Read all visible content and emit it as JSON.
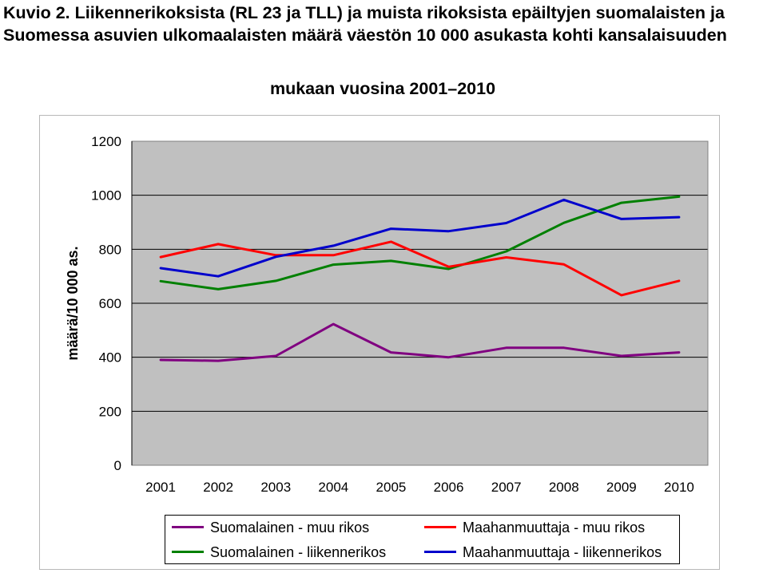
{
  "header": {
    "line1": "Kuvio 2. Liikennerikoksista (RL 23 ja TLL) ja muista rikoksista epäiltyjen suomalaisten ja",
    "line2": "Suomessa asuvien ulkomaalaisten määrä väestön 10 000 asukasta kohti kansalaisuuden",
    "line3": "mukaan vuosina 2001–2010"
  },
  "chart_data": {
    "type": "line",
    "title": "Kuvio 2. Liikennerikoksista (RL 23 ja TLL) ja muista rikoksista epäiltyjen suomalaisten ja Suomessa asuvien ulkomaalaisten määrä väestön 10 000 asukasta kohti kansalaisuuden mukaan vuosina 2001–2010",
    "xlabel": "",
    "ylabel": "määrä/10 000 as.",
    "categories": [
      "2001",
      "2002",
      "2003",
      "2004",
      "2005",
      "2006",
      "2007",
      "2008",
      "2009",
      "2010"
    ],
    "ylim": [
      0,
      1200
    ],
    "yticks": [
      "0",
      "200",
      "400",
      "600",
      "800",
      "1000",
      "1200"
    ],
    "grid": true,
    "background": "#c0c0c0",
    "series": [
      {
        "name": "Suomalainen - muu rikos",
        "color": "#800080",
        "values": [
          390,
          387,
          405,
          523,
          418,
          400,
          435,
          435,
          405,
          418
        ]
      },
      {
        "name": "Suomalainen - liikennerikos",
        "color": "#008000",
        "values": [
          682,
          652,
          683,
          743,
          757,
          727,
          792,
          898,
          972,
          995
        ]
      },
      {
        "name": "Maahanmuuttaja - muu rikos",
        "color": "#ff0000",
        "values": [
          771,
          819,
          778,
          778,
          828,
          735,
          770,
          744,
          630,
          683
        ]
      },
      {
        "name": "Maahanmuuttaja - liikennerikos",
        "color": "#0000cc",
        "values": [
          730,
          700,
          772,
          813,
          876,
          867,
          897,
          983,
          912,
          919
        ]
      }
    ],
    "legend_position": "bottom"
  }
}
